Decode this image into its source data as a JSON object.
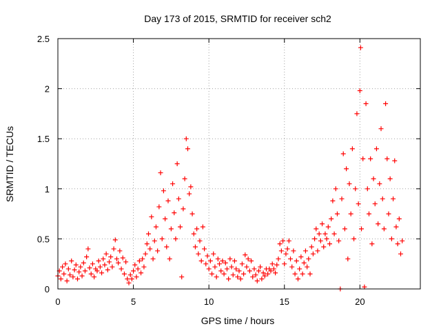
{
  "chart_data": {
    "type": "scatter",
    "title": "Day 173 of 2015, SRMTID for receiver sch2",
    "xlabel": "GPS time / hours",
    "ylabel": "SRMTID / TECUs",
    "xlim": [
      0,
      24
    ],
    "ylim": [
      0,
      2.5
    ],
    "x_ticks": [
      0,
      5,
      10,
      15,
      20
    ],
    "x_tick_labels": [
      "0",
      "5",
      "10",
      "15",
      "20"
    ],
    "y_ticks": [
      0,
      0.5,
      1,
      1.5,
      2,
      2.5
    ],
    "y_tick_labels": [
      "0",
      "0.5",
      "1",
      "1.5",
      "2",
      "2.5"
    ],
    "grid": true,
    "marker": "+",
    "series_color": "#ff0000",
    "series": [
      {
        "name": "SRMTID",
        "points": [
          [
            0.0,
            0.13
          ],
          [
            0.1,
            0.18
          ],
          [
            0.2,
            0.1
          ],
          [
            0.3,
            0.22
          ],
          [
            0.4,
            0.15
          ],
          [
            0.5,
            0.25
          ],
          [
            0.6,
            0.08
          ],
          [
            0.7,
            0.2
          ],
          [
            0.8,
            0.14
          ],
          [
            0.9,
            0.28
          ],
          [
            1.0,
            0.12
          ],
          [
            1.1,
            0.19
          ],
          [
            1.2,
            0.24
          ],
          [
            1.3,
            0.1
          ],
          [
            1.4,
            0.17
          ],
          [
            1.5,
            0.22
          ],
          [
            1.6,
            0.13
          ],
          [
            1.7,
            0.26
          ],
          [
            1.8,
            0.18
          ],
          [
            1.9,
            0.32
          ],
          [
            2.0,
            0.4
          ],
          [
            2.1,
            0.21
          ],
          [
            2.2,
            0.15
          ],
          [
            2.3,
            0.25
          ],
          [
            2.4,
            0.12
          ],
          [
            2.5,
            0.2
          ],
          [
            2.6,
            0.18
          ],
          [
            2.7,
            0.28
          ],
          [
            2.8,
            0.22
          ],
          [
            2.9,
            0.16
          ],
          [
            3.0,
            0.3
          ],
          [
            3.1,
            0.24
          ],
          [
            3.2,
            0.35
          ],
          [
            3.3,
            0.19
          ],
          [
            3.4,
            0.27
          ],
          [
            3.5,
            0.32
          ],
          [
            3.6,
            0.22
          ],
          [
            3.7,
            0.4
          ],
          [
            3.8,
            0.49
          ],
          [
            3.9,
            0.3
          ],
          [
            4.0,
            0.26
          ],
          [
            4.1,
            0.38
          ],
          [
            4.2,
            0.2
          ],
          [
            4.3,
            0.31
          ],
          [
            4.4,
            0.15
          ],
          [
            4.5,
            0.27
          ],
          [
            4.6,
            0.1
          ],
          [
            4.7,
            0.06
          ],
          [
            4.8,
            0.14
          ],
          [
            4.9,
            0.1
          ],
          [
            5.0,
            0.18
          ],
          [
            5.1,
            0.24
          ],
          [
            5.2,
            0.12
          ],
          [
            5.3,
            0.2
          ],
          [
            5.4,
            0.28
          ],
          [
            5.5,
            0.16
          ],
          [
            5.6,
            0.3
          ],
          [
            5.7,
            0.22
          ],
          [
            5.8,
            0.35
          ],
          [
            5.9,
            0.45
          ],
          [
            6.0,
            0.55
          ],
          [
            6.1,
            0.4
          ],
          [
            6.2,
            0.72
          ],
          [
            6.3,
            0.3
          ],
          [
            6.4,
            0.48
          ],
          [
            6.5,
            0.62
          ],
          [
            6.6,
            0.38
          ],
          [
            6.7,
            0.82
          ],
          [
            6.8,
            1.16
          ],
          [
            6.9,
            0.5
          ],
          [
            7.0,
            0.98
          ],
          [
            7.1,
            0.7
          ],
          [
            7.2,
            0.42
          ],
          [
            7.3,
            0.88
          ],
          [
            7.4,
            0.3
          ],
          [
            7.5,
            0.6
          ],
          [
            7.6,
            1.05
          ],
          [
            7.7,
            0.76
          ],
          [
            7.8,
            0.5
          ],
          [
            7.9,
            1.25
          ],
          [
            8.0,
            0.9
          ],
          [
            8.1,
            0.62
          ],
          [
            8.2,
            0.12
          ],
          [
            8.3,
            0.8
          ],
          [
            8.4,
            1.1
          ],
          [
            8.5,
            1.5
          ],
          [
            8.6,
            1.4
          ],
          [
            8.7,
            0.95
          ],
          [
            8.8,
            1.02
          ],
          [
            8.9,
            0.75
          ],
          [
            9.0,
            0.55
          ],
          [
            9.1,
            0.42
          ],
          [
            9.2,
            0.6
          ],
          [
            9.3,
            0.35
          ],
          [
            9.4,
            0.48
          ],
          [
            9.5,
            0.28
          ],
          [
            9.6,
            0.62
          ],
          [
            9.7,
            0.4
          ],
          [
            9.8,
            0.25
          ],
          [
            9.9,
            0.33
          ],
          [
            10.0,
            0.2
          ],
          [
            10.1,
            0.28
          ],
          [
            10.2,
            0.15
          ],
          [
            10.3,
            0.35
          ],
          [
            10.4,
            0.22
          ],
          [
            10.5,
            0.12
          ],
          [
            10.6,
            0.3
          ],
          [
            10.7,
            0.25
          ],
          [
            10.8,
            0.18
          ],
          [
            10.9,
            0.28
          ],
          [
            11.0,
            0.15
          ],
          [
            11.1,
            0.26
          ],
          [
            11.2,
            0.2
          ],
          [
            11.3,
            0.1
          ],
          [
            11.4,
            0.3
          ],
          [
            11.5,
            0.22
          ],
          [
            11.6,
            0.14
          ],
          [
            11.7,
            0.28
          ],
          [
            11.8,
            0.2
          ],
          [
            11.9,
            0.12
          ],
          [
            12.0,
            0.18
          ],
          [
            12.1,
            0.1
          ],
          [
            12.2,
            0.25
          ],
          [
            12.3,
            0.15
          ],
          [
            12.4,
            0.34
          ],
          [
            12.5,
            0.22
          ],
          [
            12.6,
            0.3
          ],
          [
            12.7,
            0.18
          ],
          [
            12.8,
            0.28
          ],
          [
            12.9,
            0.12
          ],
          [
            13.0,
            0.2
          ],
          [
            13.1,
            0.14
          ],
          [
            13.2,
            0.08
          ],
          [
            13.3,
            0.18
          ],
          [
            13.4,
            0.22
          ],
          [
            13.5,
            0.1
          ],
          [
            13.6,
            0.16
          ],
          [
            13.7,
            0.13
          ],
          [
            13.8,
            0.2
          ],
          [
            13.9,
            0.15
          ],
          [
            14.0,
            0.2
          ],
          [
            14.1,
            0.18
          ],
          [
            14.2,
            0.25
          ],
          [
            14.3,
            0.2
          ],
          [
            14.4,
            0.16
          ],
          [
            14.5,
            0.24
          ],
          [
            14.6,
            0.3
          ],
          [
            14.7,
            0.45
          ],
          [
            14.8,
            0.38
          ],
          [
            14.9,
            0.48
          ],
          [
            15.0,
            0.25
          ],
          [
            15.1,
            0.35
          ],
          [
            15.2,
            0.4
          ],
          [
            15.3,
            0.48
          ],
          [
            15.4,
            0.3
          ],
          [
            15.5,
            0.22
          ],
          [
            15.6,
            0.38
          ],
          [
            15.7,
            0.15
          ],
          [
            15.8,
            0.28
          ],
          [
            15.9,
            0.1
          ],
          [
            16.0,
            0.2
          ],
          [
            16.1,
            0.32
          ],
          [
            16.2,
            0.15
          ],
          [
            16.3,
            0.26
          ],
          [
            16.4,
            0.38
          ],
          [
            16.5,
            0.22
          ],
          [
            16.6,
            0.3
          ],
          [
            16.7,
            0.15
          ],
          [
            16.8,
            0.42
          ],
          [
            16.9,
            0.35
          ],
          [
            17.0,
            0.5
          ],
          [
            17.1,
            0.6
          ],
          [
            17.2,
            0.38
          ],
          [
            17.3,
            0.55
          ],
          [
            17.4,
            0.48
          ],
          [
            17.5,
            0.65
          ],
          [
            17.6,
            0.42
          ],
          [
            17.7,
            0.55
          ],
          [
            17.8,
            0.5
          ],
          [
            17.9,
            0.62
          ],
          [
            18.0,
            0.45
          ],
          [
            18.1,
            0.7
          ],
          [
            18.2,
            0.88
          ],
          [
            18.3,
            0.55
          ],
          [
            18.4,
            1.0
          ],
          [
            18.5,
            0.75
          ],
          [
            18.6,
            0.48
          ],
          [
            18.7,
            0.0
          ],
          [
            18.8,
            0.9
          ],
          [
            18.9,
            1.35
          ],
          [
            19.0,
            0.6
          ],
          [
            19.1,
            1.2
          ],
          [
            19.2,
            0.3
          ],
          [
            19.3,
            1.05
          ],
          [
            19.4,
            0.75
          ],
          [
            19.5,
            1.4
          ],
          [
            19.6,
            0.5
          ],
          [
            19.7,
            1.0
          ],
          [
            19.8,
            1.75
          ],
          [
            19.9,
            0.85
          ],
          [
            20.0,
            1.98
          ],
          [
            20.05,
            2.41
          ],
          [
            20.1,
            0.6
          ],
          [
            20.2,
            1.3
          ],
          [
            20.3,
            0.02
          ],
          [
            20.4,
            1.85
          ],
          [
            20.5,
            1.0
          ],
          [
            20.6,
            0.75
          ],
          [
            20.7,
            1.3
          ],
          [
            20.8,
            0.45
          ],
          [
            20.9,
            1.1
          ],
          [
            21.0,
            0.85
          ],
          [
            21.1,
            1.4
          ],
          [
            21.2,
            0.65
          ],
          [
            21.3,
            1.05
          ],
          [
            21.4,
            1.6
          ],
          [
            21.5,
            0.9
          ],
          [
            21.6,
            0.6
          ],
          [
            21.7,
            1.85
          ],
          [
            21.8,
            1.3
          ],
          [
            21.9,
            0.75
          ],
          [
            22.0,
            1.1
          ],
          [
            22.1,
            0.5
          ],
          [
            22.2,
            0.9
          ],
          [
            22.3,
            1.28
          ],
          [
            22.4,
            0.62
          ],
          [
            22.5,
            0.45
          ],
          [
            22.6,
            0.7
          ],
          [
            22.7,
            0.35
          ],
          [
            22.8,
            0.48
          ]
        ]
      }
    ]
  }
}
